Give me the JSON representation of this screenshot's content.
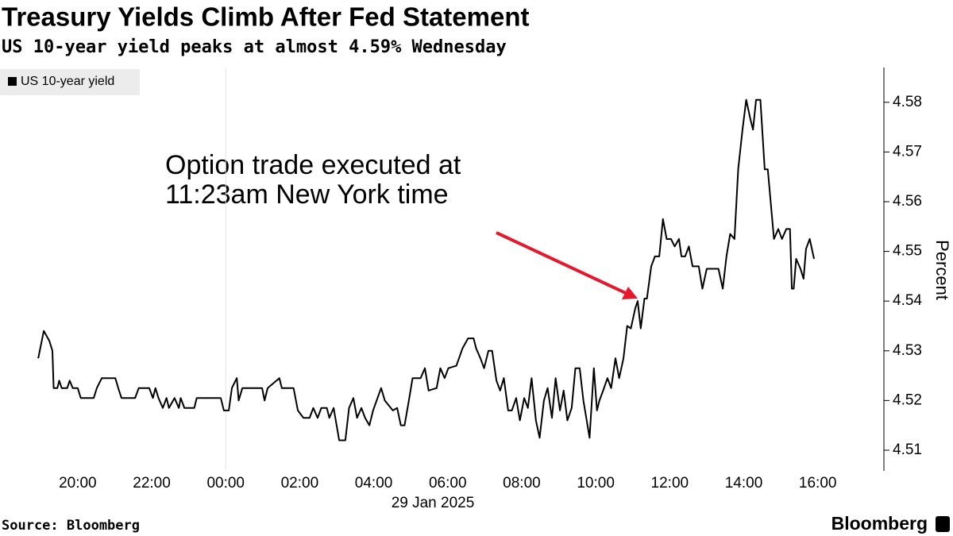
{
  "chart_data": {
    "type": "line",
    "title": "Treasury Yields Climb After Fed Statement",
    "subtitle": "US 10-year yield peaks at almost 4.59% Wednesday",
    "y_label": "Percent",
    "date_label": "29 Jan 2025",
    "source": "Source: Bloomberg",
    "brand": "Bloomberg",
    "annotations": [
      "Option trade executed at",
      "11:23am New York time"
    ],
    "annotation_color": "#e8152b",
    "legend": "top-left",
    "xlim": [
      "17:54",
      "17:46"
    ],
    "xticks": [
      "20:00",
      "22:00",
      "00:00",
      "02:00",
      "04:00",
      "06:00",
      "08:00",
      "10:00",
      "12:00",
      "14:00",
      "16:00"
    ],
    "ylim": [
      4.506,
      4.587
    ],
    "yticks": [
      4.51,
      4.52,
      4.53,
      4.54,
      4.55,
      4.56,
      4.57,
      4.58
    ],
    "x": [
      "18:56",
      "19:05",
      "19:14",
      "19:19",
      "19:21",
      "19:27",
      "19:30",
      "19:34",
      "19:43",
      "19:47",
      "19:52",
      "20:00",
      "20:05",
      "20:26",
      "20:31",
      "20:39",
      "21:01",
      "21:07",
      "21:11",
      "21:33",
      "21:39",
      "21:56",
      "22:02",
      "22:06",
      "22:11",
      "22:18",
      "22:24",
      "22:28",
      "22:37",
      "22:44",
      "22:47",
      "22:53",
      "23:09",
      "23:13",
      "23:52",
      "23:57",
      "00:05",
      "00:10",
      "00:18",
      "00:21",
      "00:27",
      "00:59",
      "01:03",
      "01:08",
      "01:27",
      "01:31",
      "01:50",
      "01:57",
      "02:06",
      "02:16",
      "02:22",
      "02:29",
      "02:35",
      "02:44",
      "02:48",
      "02:55",
      "03:04",
      "03:14",
      "03:20",
      "03:27",
      "03:33",
      "03:40",
      "03:46",
      "03:53",
      "03:59",
      "04:12",
      "04:18",
      "04:31",
      "04:38",
      "04:44",
      "04:50",
      "04:57",
      "05:03",
      "05:16",
      "05:23",
      "05:29",
      "05:42",
      "05:48",
      "05:55",
      "06:01",
      "06:14",
      "06:24",
      "06:33",
      "06:42",
      "06:46",
      "06:53",
      "06:59",
      "07:06",
      "07:12",
      "07:19",
      "07:25",
      "07:31",
      "07:38",
      "07:44",
      "07:51",
      "07:57",
      "08:04",
      "08:10",
      "08:16",
      "08:23",
      "08:29",
      "08:36",
      "08:42",
      "08:49",
      "08:55",
      "09:02",
      "09:08",
      "09:14",
      "09:21",
      "09:27",
      "09:34",
      "09:40",
      "09:50",
      "09:57",
      "10:02",
      "10:06",
      "10:12",
      "10:19",
      "10:25",
      "10:32",
      "10:38",
      "10:45",
      "10:51",
      "10:57",
      "11:04",
      "11:08",
      "11:13",
      "11:19",
      "11:23",
      "11:30",
      "11:36",
      "11:43",
      "11:49",
      "11:55",
      "12:02",
      "12:08",
      "12:15",
      "12:19",
      "12:25",
      "12:31",
      "12:37",
      "12:47",
      "12:53",
      "13:00",
      "13:19",
      "13:26",
      "13:32",
      "13:38",
      "13:45",
      "13:51",
      "13:58",
      "14:04",
      "14:11",
      "14:15",
      "14:20",
      "14:27",
      "14:34",
      "14:39",
      "14:49",
      "14:56",
      "15:02",
      "15:09",
      "15:15",
      "15:18",
      "15:21",
      "15:25",
      "15:32",
      "15:37",
      "15:41",
      "15:47",
      "15:54"
    ],
    "series": [
      {
        "name": "US 10-year yield",
        "color": "#000000",
        "values": [
          4.5285,
          4.534,
          4.532,
          4.53,
          4.5225,
          4.5225,
          4.524,
          4.5225,
          4.5225,
          4.524,
          4.5225,
          4.5225,
          4.5205,
          4.5205,
          4.5225,
          4.5245,
          4.5245,
          4.522,
          4.5205,
          4.5205,
          4.5225,
          4.5225,
          4.5205,
          4.5225,
          4.5205,
          4.5185,
          4.5205,
          4.5185,
          4.5205,
          4.5185,
          4.5205,
          4.5185,
          4.5185,
          4.5205,
          4.5205,
          4.518,
          4.518,
          4.5225,
          4.5245,
          4.52,
          4.5225,
          4.5225,
          4.52,
          4.5225,
          4.5245,
          4.5225,
          4.5225,
          4.518,
          4.5165,
          4.5165,
          4.5185,
          4.5165,
          4.5185,
          4.5185,
          4.5165,
          4.5185,
          4.512,
          4.512,
          4.5185,
          4.5205,
          4.5165,
          4.5185,
          4.5165,
          4.515,
          4.518,
          4.5225,
          4.52,
          4.518,
          4.5185,
          4.515,
          4.515,
          4.52,
          4.5245,
          4.5245,
          4.5265,
          4.522,
          4.5225,
          4.5265,
          4.5245,
          4.5265,
          4.527,
          4.5305,
          4.5325,
          4.5325,
          4.5305,
          4.5285,
          4.5265,
          4.53,
          4.53,
          4.524,
          4.522,
          4.5245,
          4.518,
          4.518,
          4.5205,
          4.516,
          4.5205,
          4.5185,
          4.5245,
          4.516,
          4.5125,
          4.52,
          4.5225,
          4.5165,
          4.5245,
          4.518,
          4.522,
          4.516,
          4.5185,
          4.5265,
          4.5265,
          4.52,
          4.5125,
          4.5265,
          4.518,
          4.52,
          4.522,
          4.5245,
          4.5225,
          4.5285,
          4.5245,
          4.5285,
          4.535,
          4.5345,
          4.5385,
          4.54,
          4.5345,
          4.5405,
          4.5405,
          4.547,
          4.549,
          4.549,
          4.5565,
          4.5525,
          4.5525,
          4.551,
          4.5525,
          4.549,
          4.549,
          4.551,
          4.547,
          4.547,
          4.5425,
          4.5465,
          4.5465,
          4.5425,
          4.549,
          4.5535,
          4.5525,
          4.5665,
          4.5745,
          4.5805,
          4.5765,
          4.5745,
          4.5805,
          4.5805,
          4.5665,
          4.5665,
          4.5525,
          4.5545,
          4.5525,
          4.5545,
          4.5545,
          4.5425,
          4.5425,
          4.5485,
          4.5465,
          4.5445,
          4.5505,
          4.5525,
          4.5485
        ]
      }
    ]
  }
}
